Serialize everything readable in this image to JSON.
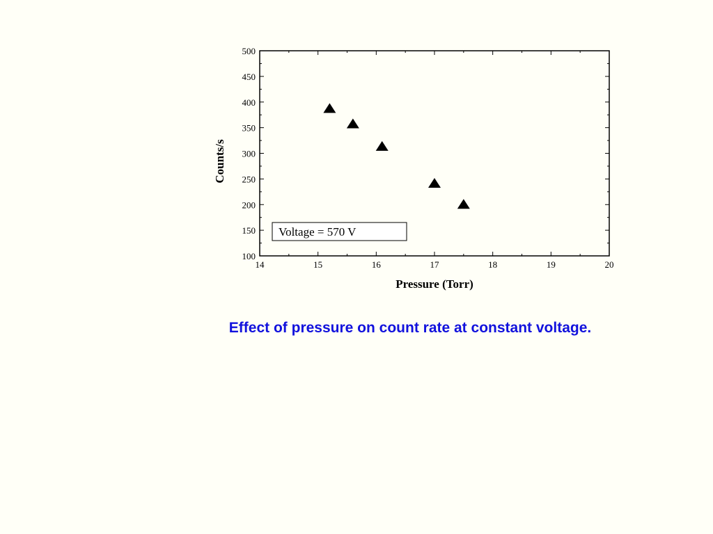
{
  "caption": "Effect of pressure on count rate at constant voltage.",
  "colors": {
    "background": "#FFFFF7",
    "caption": "#1111DD",
    "marker": "#000000"
  },
  "chart_data": {
    "type": "scatter",
    "title": "",
    "xlabel": "Pressure (Torr)",
    "ylabel": "Counts/s",
    "xlim": [
      14,
      20
    ],
    "ylim": [
      100,
      500
    ],
    "xticks": [
      14,
      15,
      16,
      17,
      18,
      19,
      20
    ],
    "yticks": [
      100,
      150,
      200,
      250,
      300,
      350,
      400,
      450,
      500
    ],
    "grid": false,
    "marker": "filled-triangle-up",
    "series": [
      {
        "x": [
          15.2,
          15.6,
          16.1,
          17.0,
          17.5
        ],
        "y": [
          387,
          357,
          313,
          241,
          200
        ]
      }
    ],
    "annotation": "Voltage = 570 V"
  }
}
